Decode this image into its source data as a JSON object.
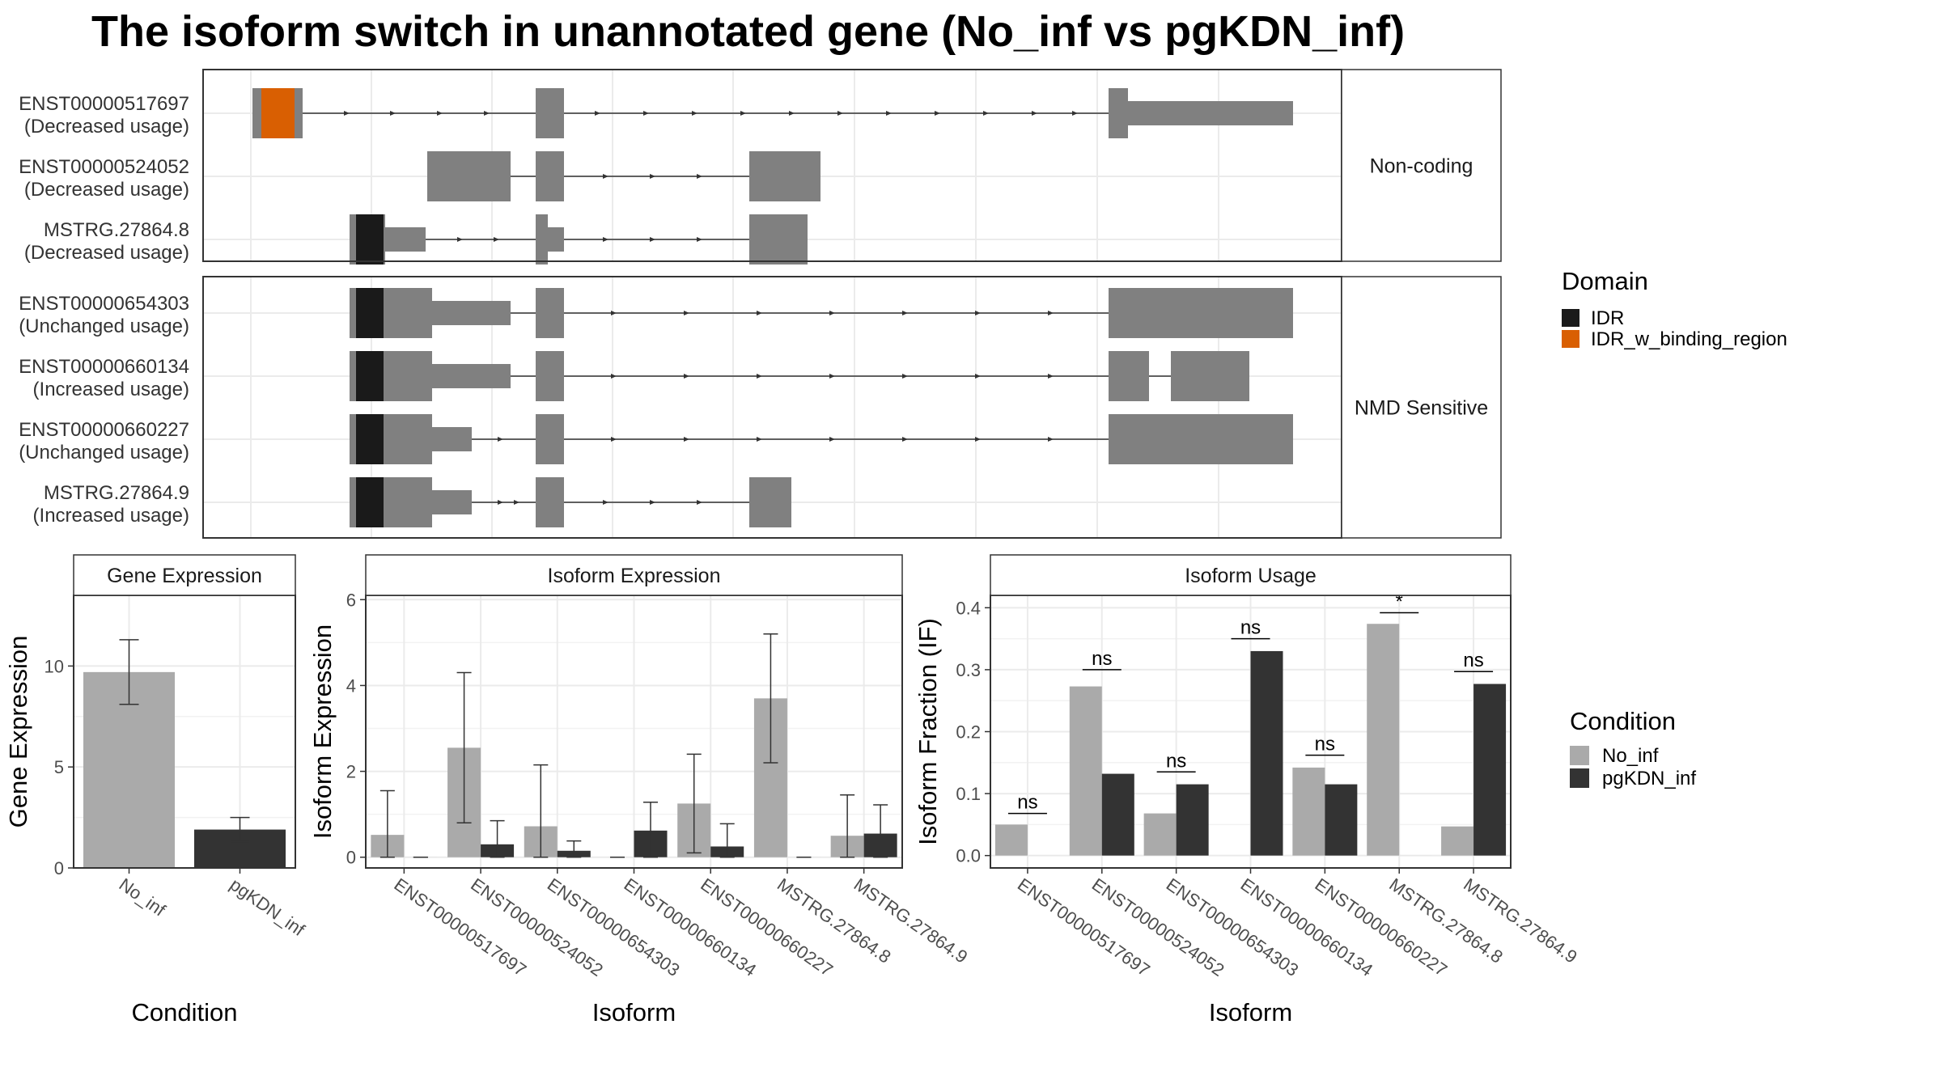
{
  "title": "The isoform switch in unannotated gene (No_inf vs pgKDN_inf)",
  "colors": {
    "exon": "#808080",
    "idr": "#1a1a1a",
    "idr_w_binding_region": "#d95f02",
    "no_inf": "#aaaaaa",
    "pgkdn_inf": "#333333",
    "grid": "#ebebeb",
    "panel_border": "#333333"
  },
  "chart_data": [
    {
      "type": "gene_structure",
      "groups": [
        {
          "label": "Non-coding",
          "isoforms": [
            {
              "name": "ENST00000517697",
              "usage": "(Decreased usage)"
            },
            {
              "name": "ENST00000524052",
              "usage": "(Decreased usage)"
            },
            {
              "name": "MSTRG.27864.8",
              "usage": "(Decreased usage)"
            }
          ]
        },
        {
          "label": "NMD Sensitive",
          "isoforms": [
            {
              "name": "ENST00000654303",
              "usage": "(Unchanged usage)"
            },
            {
              "name": "ENST00000660134",
              "usage": "(Increased usage)"
            },
            {
              "name": "ENST00000660227",
              "usage": "(Unchanged usage)"
            },
            {
              "name": "MSTRG.27864.9",
              "usage": "(Increased usage)"
            }
          ]
        }
      ],
      "legend": {
        "title": "Domain",
        "items": [
          "IDR",
          "IDR_w_binding_region"
        ]
      }
    },
    {
      "type": "bar",
      "title": "Gene Expression",
      "xlabel": "Condition",
      "ylabel": "Gene Expression",
      "categories": [
        "No_inf",
        "pgKDN_inf"
      ],
      "values": [
        9.7,
        1.9
      ],
      "errors": [
        [
          8.1,
          11.3
        ],
        [
          1.3,
          2.5
        ]
      ],
      "ylim": [
        0,
        13.5
      ],
      "yticks": [
        0,
        5,
        10
      ]
    },
    {
      "type": "bar",
      "title": "Isoform Expression",
      "xlabel": "Isoform",
      "ylabel": "Isoform Expression",
      "categories": [
        "ENST00000517697",
        "ENST00000524052",
        "ENST00000654303",
        "ENST00000660134",
        "ENST00000660227",
        "MSTRG.27864.8",
        "MSTRG.27864.9"
      ],
      "series": [
        {
          "name": "No_inf",
          "values": [
            0.52,
            2.55,
            0.72,
            0.0,
            1.25,
            3.7,
            0.5
          ],
          "errors": [
            [
              0.0,
              1.55
            ],
            [
              0.8,
              4.3
            ],
            [
              0.0,
              2.15
            ],
            [
              0.0,
              0.0
            ],
            [
              0.1,
              2.4
            ],
            [
              2.2,
              5.2
            ],
            [
              0.0,
              1.45
            ]
          ]
        },
        {
          "name": "pgKDN_inf",
          "values": [
            0.0,
            0.3,
            0.15,
            0.62,
            0.25,
            0.0,
            0.55
          ],
          "errors": [
            [
              0.0,
              0.0
            ],
            [
              0.0,
              0.85
            ],
            [
              0.0,
              0.38
            ],
            [
              0.0,
              1.28
            ],
            [
              0.0,
              0.78
            ],
            [
              0.0,
              0.0
            ],
            [
              0.0,
              1.22
            ]
          ]
        }
      ],
      "ylim": [
        -0.25,
        6.1
      ],
      "yticks": [
        0,
        2,
        4,
        6
      ]
    },
    {
      "type": "bar",
      "title": "Isoform Usage",
      "xlabel": "Isoform",
      "ylabel": "Isoform Fraction (IF)",
      "categories": [
        "ENST00000517697",
        "ENST00000524052",
        "ENST00000654303",
        "ENST00000660134",
        "ENST00000660227",
        "MSTRG.27864.8",
        "MSTRG.27864.9"
      ],
      "series": [
        {
          "name": "No_inf",
          "values": [
            0.05,
            0.273,
            0.068,
            0.0,
            0.142,
            0.374,
            0.047
          ]
        },
        {
          "name": "pgKDN_inf",
          "values": [
            0.0,
            0.132,
            0.115,
            0.33,
            0.115,
            0.0,
            0.277
          ]
        }
      ],
      "significance": [
        "ns",
        "ns",
        "ns",
        "ns",
        "ns",
        "*",
        "ns"
      ],
      "significance_y": [
        0.068,
        0.3,
        0.135,
        0.35,
        0.162,
        0.392,
        0.297
      ],
      "ylim": [
        -0.02,
        0.42
      ],
      "yticks": [
        "0.0",
        "0.1",
        "0.2",
        "0.3",
        "0.4"
      ]
    }
  ],
  "condition_legend": {
    "title": "Condition",
    "items": [
      "No_inf",
      "pgKDN_inf"
    ]
  }
}
